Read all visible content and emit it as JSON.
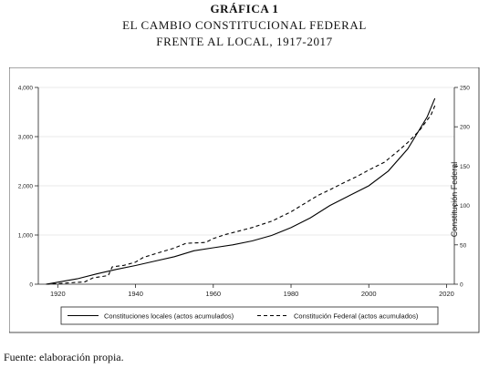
{
  "heading": {
    "line1": "GRÁFICA 1",
    "line2": "EL CAMBIO CONSTITUCIONAL FEDERAL",
    "line3": "FRENTE AL LOCAL, 1917-2017"
  },
  "source": "Fuente: elaboración propia.",
  "chart_data": {
    "type": "line",
    "title": "",
    "xlabel": "",
    "ylabel_left": "",
    "ylabel_right": "Constitución Federal",
    "x_ticks": [
      1920,
      1940,
      1960,
      1980,
      2000,
      2020
    ],
    "x_tick_labels": [
      "1920",
      "1940",
      "1960",
      "1980",
      "2000",
      "2020"
    ],
    "xlim": [
      1915,
      2022
    ],
    "y_left_ticks": [
      0,
      1000,
      2000,
      3000,
      4000
    ],
    "y_left_tick_labels": [
      "0",
      "1,000",
      "2,000",
      "3,000",
      "4,000"
    ],
    "ylim_left": [
      0,
      4000
    ],
    "y_right_ticks": [
      0,
      50,
      100,
      150,
      200,
      250
    ],
    "y_right_tick_labels": [
      "0",
      "50",
      "100",
      "150",
      "200",
      "250"
    ],
    "ylim_right": [
      0,
      250
    ],
    "grid": true,
    "legend_position": "bottom",
    "series": [
      {
        "name": "Constituciones locales (actos acumulados)",
        "axis": "left",
        "style": "solid",
        "x": [
          1917,
          1920,
          1925,
          1930,
          1935,
          1940,
          1945,
          1950,
          1955,
          1960,
          1965,
          1970,
          1975,
          1980,
          1985,
          1990,
          1995,
          2000,
          2005,
          2010,
          2015,
          2017
        ],
        "values": [
          0,
          40,
          110,
          210,
          300,
          380,
          470,
          560,
          680,
          740,
          800,
          880,
          990,
          1150,
          1350,
          1600,
          1800,
          2000,
          2300,
          2750,
          3400,
          3780
        ]
      },
      {
        "name": "Constitución Federal (actos acumulados)",
        "axis": "right",
        "style": "dashed",
        "x": [
          1917,
          1921,
          1927,
          1929,
          1933,
          1934,
          1937,
          1940,
          1942,
          1946,
          1950,
          1953,
          1958,
          1960,
          1963,
          1967,
          1970,
          1975,
          1980,
          1983,
          1987,
          1990,
          1994,
          1997,
          2000,
          2004,
          2007,
          2010,
          2013,
          2016,
          2017
        ],
        "values": [
          0,
          1,
          3,
          8,
          11,
          22,
          24,
          28,
          34,
          40,
          46,
          52,
          53,
          58,
          63,
          68,
          72,
          80,
          92,
          101,
          113,
          120,
          130,
          137,
          145,
          155,
          167,
          180,
          195,
          215,
          227
        ]
      }
    ]
  }
}
